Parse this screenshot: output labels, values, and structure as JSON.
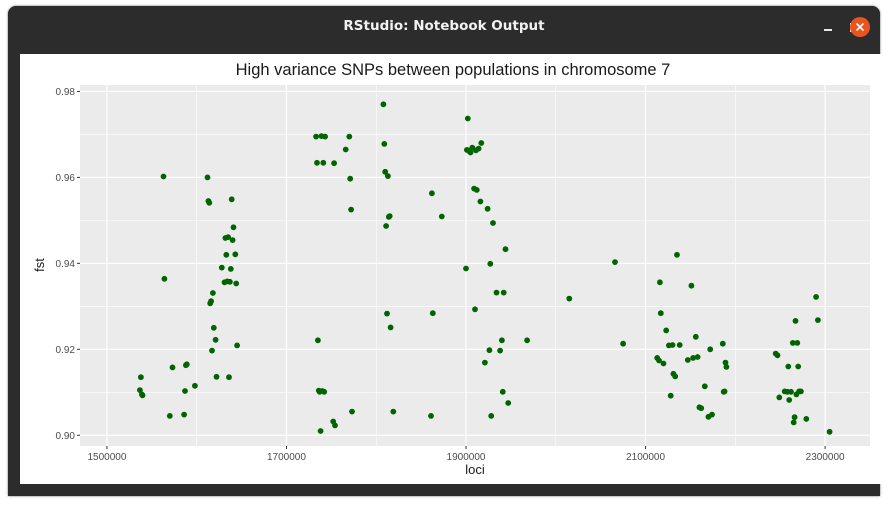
{
  "window": {
    "title": "RStudio: Notebook Output",
    "controls": [
      "minimize",
      "maximize",
      "close"
    ]
  },
  "chart_data": {
    "type": "scatter",
    "title": "High variance SNPs between populations in chromosome 7",
    "xlabel": "loci",
    "ylabel": "fst",
    "xlim": [
      1470000,
      2350000
    ],
    "ylim": [
      0.8975,
      0.9815
    ],
    "xticks": [
      1500000,
      1700000,
      1900000,
      2100000,
      2300000
    ],
    "xtick_labels": [
      "1500000",
      "1700000",
      "1900000",
      "2100000",
      "2300000"
    ],
    "yticks": [
      0.9,
      0.92,
      0.94,
      0.96,
      0.98
    ],
    "ytick_labels": [
      "0.90",
      "0.92",
      "0.94",
      "0.96",
      "0.98"
    ],
    "grid": true,
    "legend": "none",
    "colors": {
      "point": "#006400",
      "panel": "#ebebeb",
      "grid": "#ffffff"
    },
    "series": [
      {
        "points": [
          [
            1537800,
            0.9135
          ],
          [
            1536700,
            0.9105
          ],
          [
            1538900,
            0.9095
          ],
          [
            1539600,
            0.9093
          ],
          [
            1563000,
            0.9602
          ],
          [
            1564000,
            0.9364
          ],
          [
            1570000,
            0.9045
          ],
          [
            1573000,
            0.9158
          ],
          [
            1586000,
            0.9048
          ],
          [
            1587000,
            0.9103
          ],
          [
            1588000,
            0.9163
          ],
          [
            1589000,
            0.9165
          ],
          [
            1598000,
            0.9115
          ],
          [
            1612000,
            0.96
          ],
          [
            1613000,
            0.9545
          ],
          [
            1614000,
            0.9541
          ],
          [
            1615000,
            0.9307
          ],
          [
            1616000,
            0.9312
          ],
          [
            1617000,
            0.9197
          ],
          [
            1618000,
            0.9331
          ],
          [
            1619000,
            0.925
          ],
          [
            1621000,
            0.9222
          ],
          [
            1622000,
            0.9136
          ],
          [
            1628000,
            0.939
          ],
          [
            1631000,
            0.9356
          ],
          [
            1632000,
            0.9459
          ],
          [
            1633000,
            0.942
          ],
          [
            1634000,
            0.9358
          ],
          [
            1635000,
            0.9461
          ],
          [
            1636000,
            0.9135
          ],
          [
            1637000,
            0.9357
          ],
          [
            1638000,
            0.9387
          ],
          [
            1639000,
            0.9549
          ],
          [
            1640000,
            0.9454
          ],
          [
            1641000,
            0.9484
          ],
          [
            1643000,
            0.9421
          ],
          [
            1644000,
            0.9353
          ],
          [
            1645000,
            0.9209
          ],
          [
            1733000,
            0.9695
          ],
          [
            1734000,
            0.9634
          ],
          [
            1735000,
            0.9221
          ],
          [
            1736000,
            0.9104
          ],
          [
            1737000,
            0.9101
          ],
          [
            1738000,
            0.901
          ],
          [
            1739000,
            0.9696
          ],
          [
            1740000,
            0.9103
          ],
          [
            1741000,
            0.9634
          ],
          [
            1742000,
            0.9101
          ],
          [
            1743000,
            0.9695
          ],
          [
            1752000,
            0.9032
          ],
          [
            1753000,
            0.9633
          ],
          [
            1754000,
            0.9023
          ],
          [
            1766000,
            0.9665
          ],
          [
            1770000,
            0.9695
          ],
          [
            1771000,
            0.9597
          ],
          [
            1772000,
            0.9525
          ],
          [
            1773000,
            0.9055
          ],
          [
            1808000,
            0.977
          ],
          [
            1809000,
            0.9678
          ],
          [
            1810000,
            0.9613
          ],
          [
            1811000,
            0.9487
          ],
          [
            1812000,
            0.9283
          ],
          [
            1813000,
            0.9603
          ],
          [
            1814000,
            0.9508
          ],
          [
            1815000,
            0.951
          ],
          [
            1816000,
            0.9251
          ],
          [
            1819000,
            0.9055
          ],
          [
            1861000,
            0.9045
          ],
          [
            1862000,
            0.9563
          ],
          [
            1863000,
            0.9284
          ],
          [
            1873000,
            0.9509
          ],
          [
            1900000,
            0.9388
          ],
          [
            1901000,
            0.9664
          ],
          [
            1902000,
            0.9737
          ],
          [
            1903000,
            0.9662
          ],
          [
            1905000,
            0.9658
          ],
          [
            1907000,
            0.9669
          ],
          [
            1909000,
            0.9574
          ],
          [
            1910000,
            0.9293
          ],
          [
            1911000,
            0.9663
          ],
          [
            1912000,
            0.9571
          ],
          [
            1914000,
            0.9667
          ],
          [
            1916000,
            0.9544
          ],
          [
            1917000,
            0.968
          ],
          [
            1921000,
            0.9169
          ],
          [
            1924000,
            0.9527
          ],
          [
            1926000,
            0.9198
          ],
          [
            1927000,
            0.9399
          ],
          [
            1928000,
            0.9045
          ],
          [
            1930000,
            0.9494
          ],
          [
            1934000,
            0.9332
          ],
          [
            1938000,
            0.9197
          ],
          [
            1940000,
            0.9221
          ],
          [
            1941000,
            0.9101
          ],
          [
            1942000,
            0.9332
          ],
          [
            1944000,
            0.9433
          ],
          [
            1947000,
            0.9075
          ],
          [
            1968000,
            0.9221
          ],
          [
            2015000,
            0.9318
          ],
          [
            2066000,
            0.9403
          ],
          [
            2075000,
            0.9213
          ],
          [
            2113000,
            0.918
          ],
          [
            2115000,
            0.9174
          ],
          [
            2116000,
            0.9356
          ],
          [
            2117000,
            0.9284
          ],
          [
            2120000,
            0.9167
          ],
          [
            2123000,
            0.9244
          ],
          [
            2126000,
            0.9209
          ],
          [
            2128000,
            0.9092
          ],
          [
            2130000,
            0.921
          ],
          [
            2131000,
            0.9143
          ],
          [
            2133000,
            0.9137
          ],
          [
            2135000,
            0.942
          ],
          [
            2138000,
            0.921
          ],
          [
            2147000,
            0.9175
          ],
          [
            2151000,
            0.9348
          ],
          [
            2153000,
            0.918
          ],
          [
            2156000,
            0.9229
          ],
          [
            2158000,
            0.9182
          ],
          [
            2160000,
            0.9065
          ],
          [
            2162000,
            0.9063
          ],
          [
            2166000,
            0.9114
          ],
          [
            2170000,
            0.9043
          ],
          [
            2172000,
            0.92
          ],
          [
            2174000,
            0.9048
          ],
          [
            2186000,
            0.9213
          ],
          [
            2187000,
            0.9101
          ],
          [
            2188000,
            0.9102
          ],
          [
            2189000,
            0.9169
          ],
          [
            2190000,
            0.9159
          ],
          [
            2245000,
            0.919
          ],
          [
            2247000,
            0.9186
          ],
          [
            2249000,
            0.9088
          ],
          [
            2255000,
            0.9102
          ],
          [
            2258000,
            0.9101
          ],
          [
            2259000,
            0.916
          ],
          [
            2260000,
            0.9082
          ],
          [
            2262000,
            0.9101
          ],
          [
            2264000,
            0.9215
          ],
          [
            2265000,
            0.903
          ],
          [
            2266000,
            0.9042
          ],
          [
            2267000,
            0.9266
          ],
          [
            2268000,
            0.9095
          ],
          [
            2269000,
            0.9215
          ],
          [
            2270000,
            0.916
          ],
          [
            2271000,
            0.9102
          ],
          [
            2273000,
            0.9102
          ],
          [
            2279000,
            0.9038
          ],
          [
            2290000,
            0.9322
          ],
          [
            2292000,
            0.9268
          ],
          [
            2305000,
            0.9008
          ]
        ]
      }
    ]
  }
}
